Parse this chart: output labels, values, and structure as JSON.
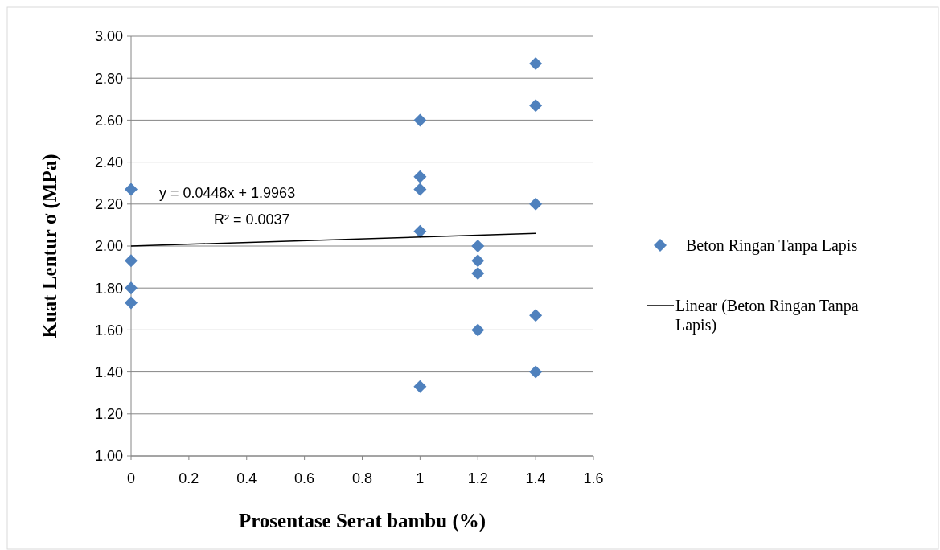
{
  "chart_data": {
    "type": "scatter",
    "xlabel": "Prosentase Serat bambu (%)",
    "ylabel": "Kuat Lentur σ (MPa)",
    "xlim": [
      0,
      1.6
    ],
    "xticks": [
      0,
      0.2,
      0.4,
      0.6,
      0.8,
      1,
      1.2,
      1.4,
      1.6
    ],
    "ylim": [
      1,
      3
    ],
    "yticks": [
      {
        "value": 1,
        "label": "1.00"
      },
      {
        "value": 1.2,
        "label": "1.20"
      },
      {
        "value": 1.4,
        "label": "1.40"
      },
      {
        "value": 1.6,
        "label": "1.60"
      },
      {
        "value": 1.8,
        "label": "1.80"
      },
      {
        "value": 2,
        "label": "2.00"
      },
      {
        "value": 2.2,
        "label": "2.20"
      },
      {
        "value": 2.4,
        "label": "2.40"
      },
      {
        "value": 2.6,
        "label": "2.60"
      },
      {
        "value": 2.8,
        "label": "2.80"
      },
      {
        "value": 3,
        "label": "3.00"
      }
    ],
    "grid": "y",
    "legend": "right",
    "marker": "diamond",
    "series": [
      {
        "name": "Beton Ringan Tanpa Lapis",
        "color": "#4f81bd",
        "x": [
          0,
          0,
          0,
          0,
          1,
          1,
          1,
          1,
          1,
          1.2,
          1.2,
          1.2,
          1.2,
          1.4,
          1.4,
          1.4,
          1.4,
          1.4
        ],
        "values": [
          2.27,
          1.93,
          1.8,
          1.73,
          2.6,
          2.33,
          2.27,
          2.07,
          1.33,
          2,
          1.93,
          1.87,
          1.6,
          2.87,
          2.67,
          2.2,
          1.67,
          1.4
        ]
      },
      {
        "name": "Linear (Beton Ringan Tanpa Lapis)",
        "type": "line",
        "marker": "none",
        "color": "#000000",
        "x": [
          0,
          1.4
        ],
        "values": [
          2.0,
          2.06
        ]
      }
    ],
    "annotations": [
      "y = 0.0448x + 1.9963",
      "R² = 0.0037"
    ]
  }
}
